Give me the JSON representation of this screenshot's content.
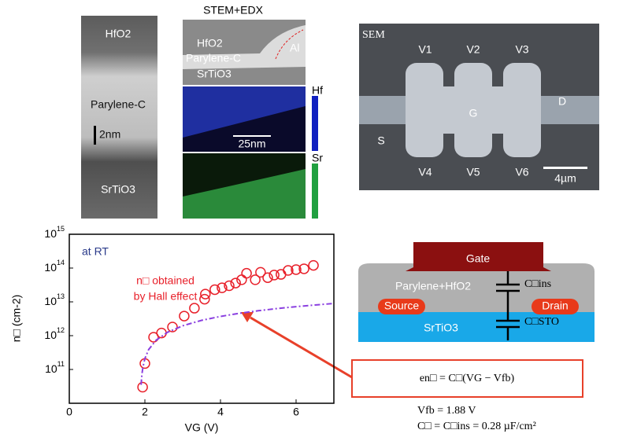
{
  "images": {
    "tem": {
      "labels": [
        "HfO2",
        "Parylene-C",
        "2nm",
        "SrTiO3"
      ]
    },
    "stem": {
      "title": "STEM+EDX",
      "labels": [
        "HfO2",
        "Parylene-C",
        "SrTiO3",
        "Al",
        "Hf",
        "25nm",
        "Sr"
      ]
    },
    "sem": {
      "labels": [
        "SEM",
        "V1",
        "V2",
        "V3",
        "G",
        "S",
        "D",
        "V4",
        "V5",
        "V6",
        "4µm"
      ]
    }
  },
  "schematic": {
    "gate": "Gate",
    "layer": "Parylene+HfO2",
    "source": "Source",
    "drain": "Drain",
    "substrate": "SrTiO3",
    "c_ins": "C□ins",
    "c_sto": "C□STO"
  },
  "formula": {
    "main": "en□ = C□(VG − Vfb)",
    "vfb": "Vfb = 1.88 V",
    "c": "C□ = C□ins = 0.28 µF/cm²"
  },
  "chart_data": {
    "type": "scatter",
    "xlabel": "VG (V)",
    "ylabel": "n□ (cm-2)",
    "log_y": true,
    "annotations": [
      "at RT",
      "n□ obtained",
      "by Hall effect"
    ],
    "xlim": [
      0,
      7
    ],
    "xticks": [
      0,
      2,
      4,
      6
    ],
    "ylim": [
      10000000000.0,
      1000000000000000.0
    ],
    "yticks": [
      {
        "value": 100000000000.0,
        "label": "10^11"
      },
      {
        "value": 1000000000000.0,
        "label": "10^12"
      },
      {
        "value": 10000000000000.0,
        "label": "10^13"
      },
      {
        "value": 100000000000000.0,
        "label": "10^14"
      },
      {
        "value": 1000000000000000.0,
        "label": "10^15"
      }
    ],
    "series": [
      {
        "color": "#e8202a",
        "marker": "open-circle",
        "x": [
          1.94,
          2.0,
          2.23,
          2.44,
          2.73,
          3.04,
          3.31,
          3.58,
          3.6,
          3.85,
          4.04,
          4.23,
          4.4,
          4.56,
          4.69,
          4.92,
          5.06,
          5.25,
          5.42,
          5.6,
          5.79,
          6.0,
          6.21,
          6.46
        ],
        "values": [
          30000000000.0,
          150000000000.0,
          900000000000.0,
          1200000000000.0,
          1800000000000.0,
          3800000000000.0,
          6500000000000.0,
          12000000000000.0,
          17000000000000.0,
          23000000000000.0,
          26000000000000.0,
          30000000000000.0,
          36000000000000.0,
          45000000000000.0,
          70000000000000.0,
          45000000000000.0,
          75000000000000.0,
          52000000000000.0,
          62000000000000.0,
          65000000000000.0,
          85000000000000.0,
          90000000000000.0,
          95000000000000.0,
          120000000000000.0
        ]
      },
      {
        "color": "#8a3fe0",
        "marker": "dash-dot-line",
        "x": [
          1.9,
          1.92,
          1.95,
          2.0,
          2.1,
          2.3,
          2.6,
          3.0,
          3.5,
          4.0,
          4.5,
          5.0,
          5.5,
          6.0,
          6.5,
          7.0
        ],
        "values": [
          35000000000.0,
          70000000000.0,
          120000000000.0,
          210000000000.0,
          390000000000.0,
          740000000000.0,
          1260000000000.0,
          1960000000000.0,
          2840000000000.0,
          3710000000000.0,
          4590000000000.0,
          5460000000000.0,
          6340000000000.0,
          7210000000000.0,
          8090000000000.0,
          8960000000000.0
        ]
      }
    ]
  }
}
